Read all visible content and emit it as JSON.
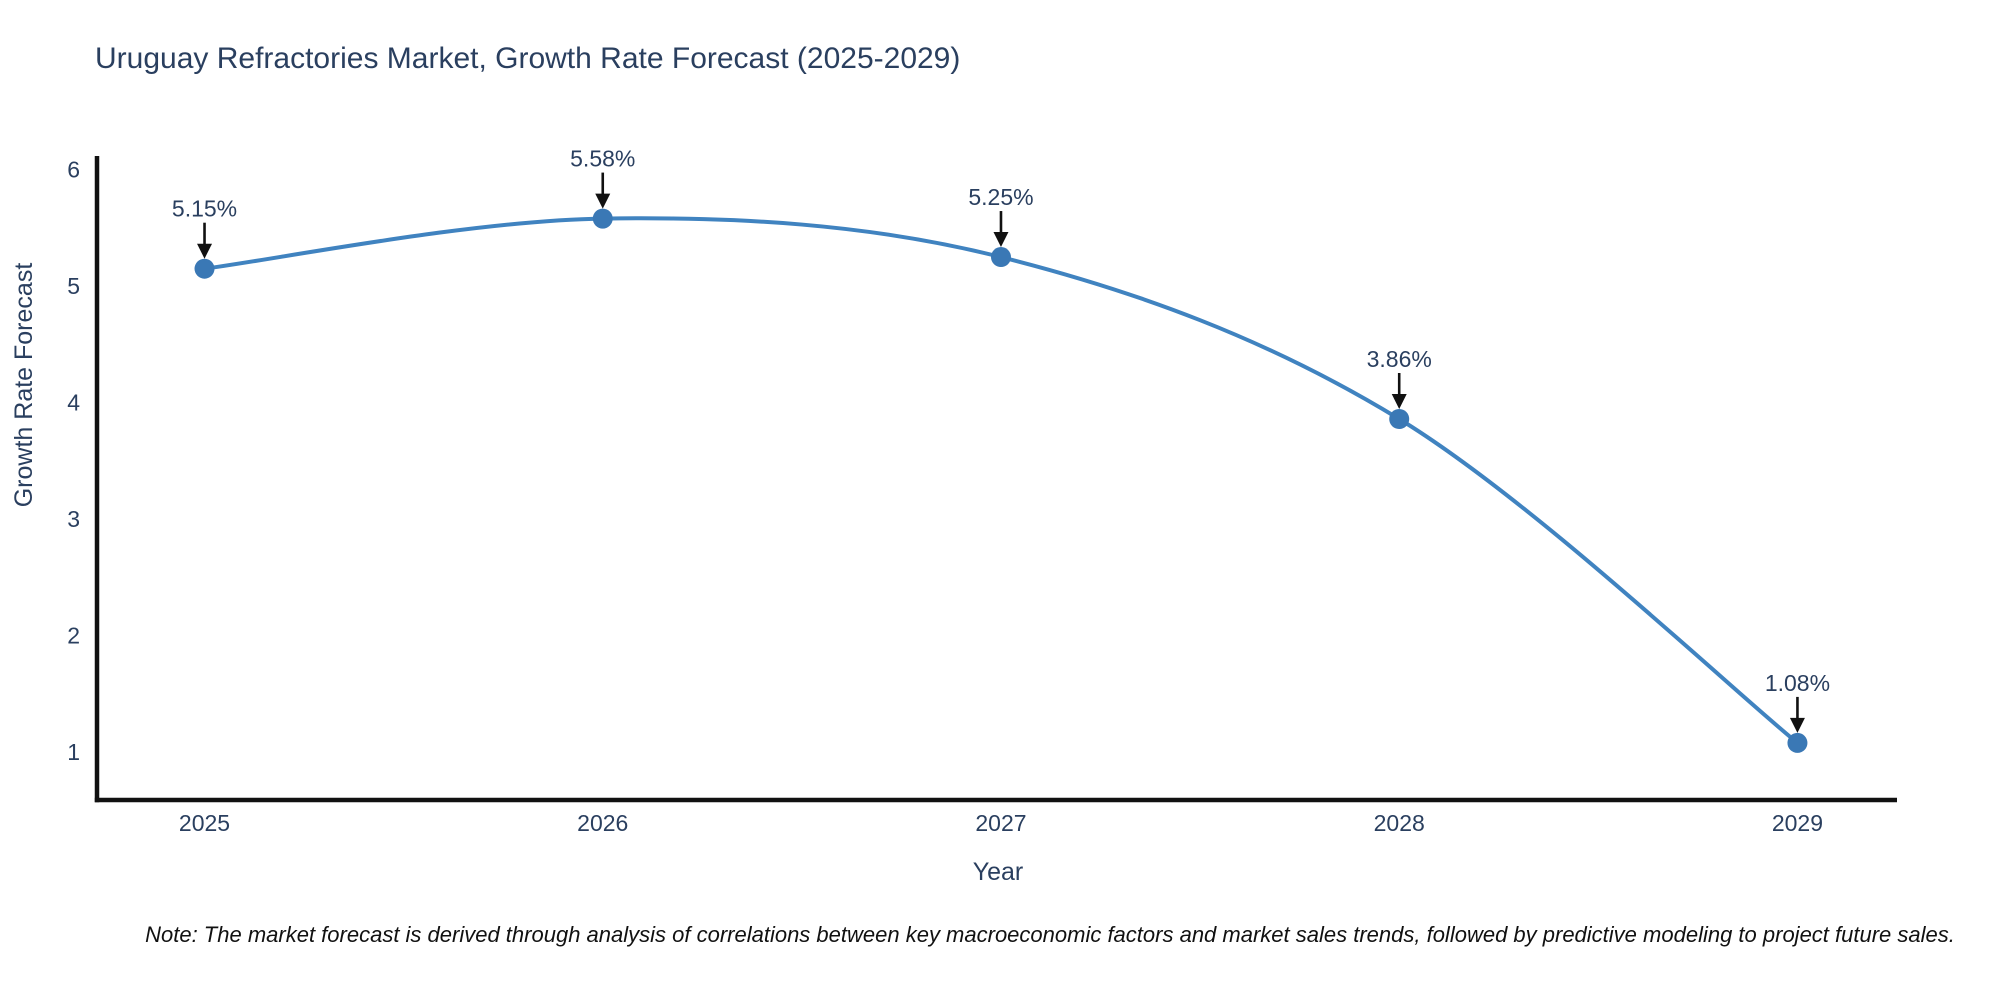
{
  "title": "Uruguay Refractories Market, Growth Rate Forecast (2025-2029)",
  "note": "Note: The market forecast is derived through analysis of correlations between key macroeconomic factors and market sales trends, followed by predictive modeling to project future sales.",
  "chart_data": {
    "type": "line",
    "title": "Uruguay Refractories Market, Growth Rate Forecast (2025-2029)",
    "xlabel": "Year",
    "ylabel": "Growth Rate Forecast",
    "x": [
      2025,
      2026,
      2027,
      2028,
      2029
    ],
    "values": [
      5.15,
      5.58,
      5.25,
      3.86,
      1.08
    ],
    "point_labels": [
      "5.15%",
      "5.58%",
      "5.25%",
      "3.86%",
      "1.08%"
    ],
    "xticks": [
      "2025",
      "2026",
      "2027",
      "2028",
      "2029"
    ],
    "yticks": [
      1,
      2,
      3,
      4,
      5,
      6
    ],
    "xlim": [
      2024.73,
      2029.25
    ],
    "ylim": [
      0.59,
      6.1
    ],
    "grid": false,
    "legend": "none",
    "line_shape": "spline",
    "colors": {
      "line": "#4083c0",
      "marker": "#3a78b5",
      "axis": "#111111",
      "text": "#2a3f5f",
      "arrow": "#111111",
      "background": "#ffffff"
    }
  }
}
